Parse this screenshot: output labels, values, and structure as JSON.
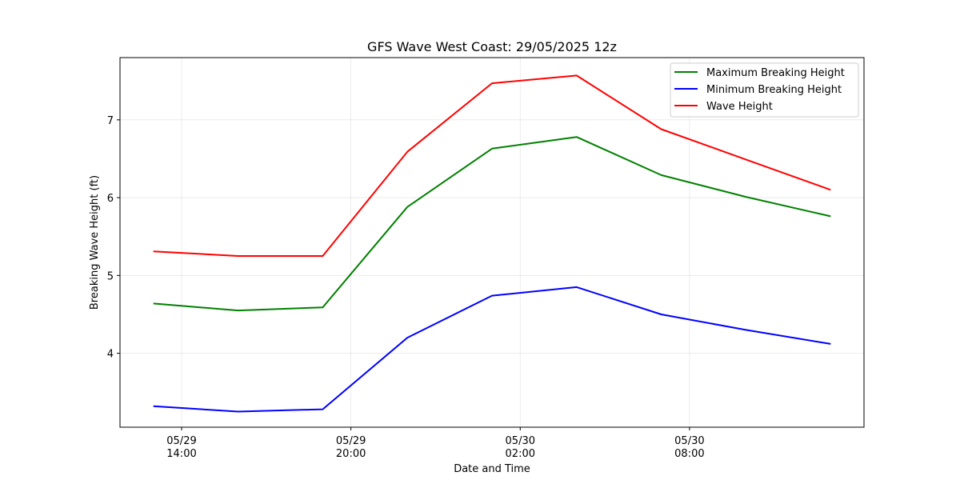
{
  "chart_data": {
    "type": "line",
    "title": "GFS Wave West Coast: 29/05/2025 12z",
    "xlabel": "Date and Time",
    "ylabel": "Breaking Wave Height (ft)",
    "x": [
      "2025-05-29 13:00",
      "2025-05-29 16:00",
      "2025-05-29 19:00",
      "2025-05-29 22:00",
      "2025-05-30 01:00",
      "2025-05-30 04:00",
      "2025-05-30 07:00",
      "2025-05-30 10:00",
      "2025-05-30 13:00"
    ],
    "xlim": [
      "2025-05-29 11:49",
      "2025-05-30 14:11"
    ],
    "ylim": [
      3.05,
      7.8
    ],
    "x_ticks": [
      {
        "at": "2025-05-29 14:00",
        "label": [
          "05/29",
          "14:00"
        ]
      },
      {
        "at": "2025-05-29 20:00",
        "label": [
          "05/29",
          "20:00"
        ]
      },
      {
        "at": "2025-05-30 02:00",
        "label": [
          "05/30",
          "02:00"
        ]
      },
      {
        "at": "2025-05-30 08:00",
        "label": [
          "05/30",
          "08:00"
        ]
      }
    ],
    "y_ticks": [
      4,
      5,
      6,
      7
    ],
    "grid": true,
    "legend_position": "top-right",
    "series": [
      {
        "name": "Maximum Breaking Height",
        "color": "#008000",
        "values": [
          4.64,
          4.55,
          4.59,
          5.88,
          6.63,
          6.78,
          6.29,
          6.01,
          5.76
        ]
      },
      {
        "name": "Minimum Breaking Height",
        "color": "#0000ff",
        "values": [
          3.32,
          3.25,
          3.28,
          4.2,
          4.74,
          4.85,
          4.5,
          4.3,
          4.12
        ]
      },
      {
        "name": "Wave Height",
        "color": "#ff0000",
        "values": [
          5.31,
          5.25,
          5.25,
          6.59,
          7.47,
          7.57,
          6.88,
          6.49,
          6.1
        ]
      }
    ]
  }
}
